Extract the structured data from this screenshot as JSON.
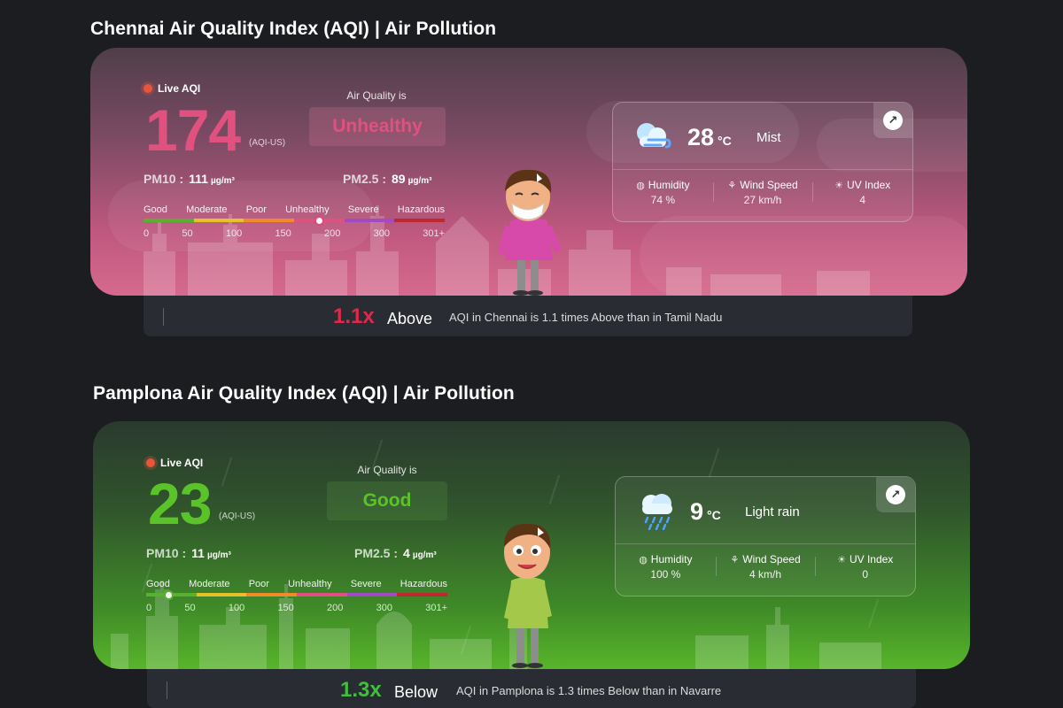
{
  "sections": [
    {
      "title": "Chennai Air Quality Index (AQI) | Air Pollution",
      "live_label": "Live AQI",
      "aqi": "174",
      "aqi_unit": "(AQI-US)",
      "quality_label": "Air Quality is",
      "quality_status": "Unhealthy",
      "pm10_label": "PM10 :",
      "pm10_value": "111",
      "pm10_unit": "µg/m³",
      "pm25_label": "PM2.5 :",
      "pm25_value": "89",
      "pm25_unit": "µg/m³",
      "scale_labels": [
        "Good",
        "Moderate",
        "Poor",
        "Unhealthy",
        "Severe",
        "Hazardous"
      ],
      "scale_nums": [
        "0",
        "50",
        "100",
        "150",
        "200",
        "300",
        "301+"
      ],
      "weather": {
        "icon": "cloud-wind-icon",
        "temp": "28",
        "temp_unit": "°C",
        "condition": "Mist",
        "humidity_label": "Humidity",
        "humidity_value": "74 %",
        "wind_label": "Wind Speed",
        "wind_value": "27 km/h",
        "uv_label": "UV Index",
        "uv_value": "4"
      },
      "compare": {
        "times": "1.1x",
        "direction": "Above",
        "description": "AQI in Chennai is 1.1 times Above than in Tamil Nadu"
      },
      "accent": "#e0517f"
    },
    {
      "title": "Pamplona Air Quality Index (AQI) | Air Pollution",
      "live_label": "Live AQI",
      "aqi": "23",
      "aqi_unit": "(AQI-US)",
      "quality_label": "Air Quality is",
      "quality_status": "Good",
      "pm10_label": "PM10 :",
      "pm10_value": "11",
      "pm10_unit": "µg/m³",
      "pm25_label": "PM2.5 :",
      "pm25_value": "4",
      "pm25_unit": "µg/m³",
      "scale_labels": [
        "Good",
        "Moderate",
        "Poor",
        "Unhealthy",
        "Severe",
        "Hazardous"
      ],
      "scale_nums": [
        "0",
        "50",
        "100",
        "150",
        "200",
        "300",
        "301+"
      ],
      "weather": {
        "icon": "rain-cloud-icon",
        "temp": "9",
        "temp_unit": "°C",
        "condition": "Light rain",
        "humidity_label": "Humidity",
        "humidity_value": "100 %",
        "wind_label": "Wind Speed",
        "wind_value": "4 km/h",
        "uv_label": "UV Index",
        "uv_value": "0"
      },
      "compare": {
        "times": "1.3x",
        "direction": "Below",
        "description": "AQI in Pamplona is 1.3 times Below than in Navarre"
      },
      "accent": "#5ac32a"
    }
  ],
  "scale_colors": [
    "#59b031",
    "#e5c12b",
    "#f08a2a",
    "#e0517f",
    "#a14ac4",
    "#c0282f"
  ]
}
